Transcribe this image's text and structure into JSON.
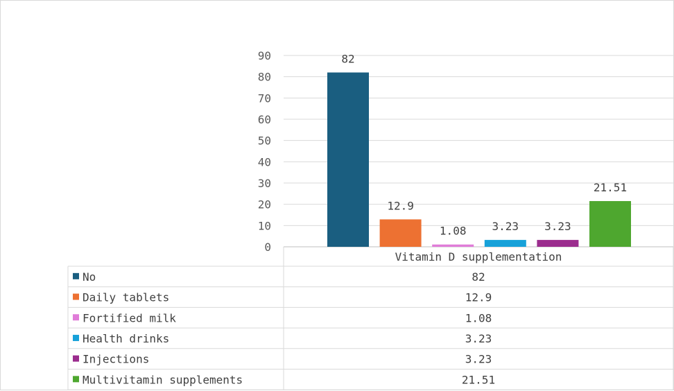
{
  "chart_data": {
    "type": "bar",
    "categories": [
      "Vitamin D supplementation"
    ],
    "series": [
      {
        "name": "No",
        "values": [
          82
        ],
        "color": "#1a5e80"
      },
      {
        "name": "Daily tablets",
        "values": [
          12.9
        ],
        "color": "#ed7132"
      },
      {
        "name": "Fortified milk",
        "values": [
          1.08
        ],
        "color": "#e07cd8"
      },
      {
        "name": "Health drinks",
        "values": [
          3.23
        ],
        "color": "#17a1d9"
      },
      {
        "name": "Injections",
        "values": [
          3.23
        ],
        "color": "#9b2d8e"
      },
      {
        "name": "Multivitamin supplements",
        "values": [
          21.51
        ],
        "color": "#4ea72f"
      }
    ],
    "ylim": [
      0,
      90
    ],
    "yticks": [
      0,
      10,
      20,
      30,
      40,
      50,
      60,
      70,
      80,
      90
    ],
    "grid": true,
    "legend": "data-table"
  }
}
